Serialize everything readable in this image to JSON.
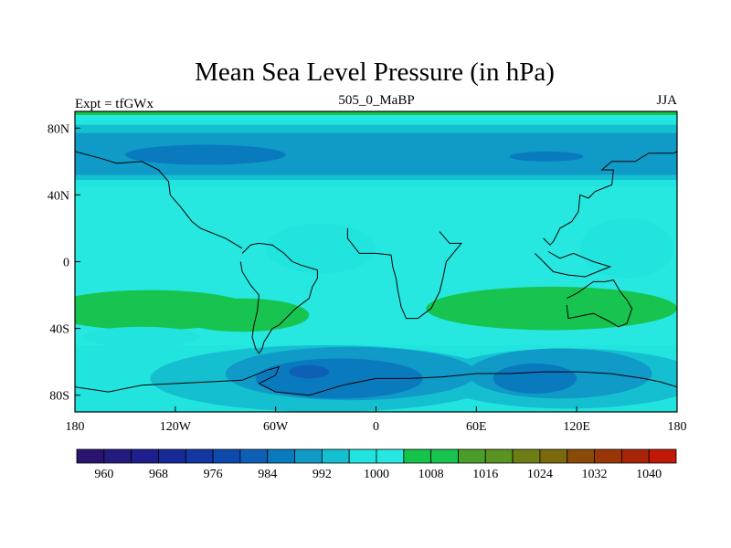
{
  "chart_data": {
    "type": "heatmap",
    "title": "Mean Sea Level Pressure (in hPa)",
    "left_label": "Expt = tfGWx",
    "center_label": "505_0_MaBP",
    "right_label": "JJA",
    "x_range": [
      -180,
      180
    ],
    "y_range": [
      -90,
      90
    ],
    "x_ticks": [
      {
        "value": -180,
        "label": "180"
      },
      {
        "value": -120,
        "label": "120W"
      },
      {
        "value": -60,
        "label": "60W"
      },
      {
        "value": 0,
        "label": "0"
      },
      {
        "value": 60,
        "label": "60E"
      },
      {
        "value": 120,
        "label": "120E"
      },
      {
        "value": 180,
        "label": "180"
      }
    ],
    "y_ticks": [
      {
        "value": 80,
        "label": "80N"
      },
      {
        "value": 40,
        "label": "40N"
      },
      {
        "value": 0,
        "label": "0"
      },
      {
        "value": -40,
        "label": "40S"
      },
      {
        "value": -80,
        "label": "80S"
      }
    ],
    "colorbar": {
      "levels": [
        960,
        964,
        968,
        972,
        976,
        980,
        984,
        988,
        992,
        996,
        1000,
        1004,
        1008,
        1012,
        1016,
        1020,
        1024,
        1028,
        1032,
        1036,
        1040
      ],
      "labels": [
        "960",
        "968",
        "976",
        "984",
        "992",
        "1000",
        "1008",
        "1016",
        "1024",
        "1032",
        "1040"
      ],
      "colors": [
        "#2a1470",
        "#231b7e",
        "#1d1f8c",
        "#172996",
        "#1236a2",
        "#0e4aad",
        "#0d60b6",
        "#0a7abf",
        "#109ac8",
        "#14c0d0",
        "#22e4df",
        "#26e8e0",
        "#16c34a",
        "#18c450",
        "#4a9e28",
        "#58941f",
        "#6e7e14",
        "#7a6a0c",
        "#8a4a08",
        "#9a3506",
        "#a82408",
        "#c21808"
      ]
    },
    "regions": [
      {
        "level": 996,
        "shape": "band",
        "lat": [
          45,
          85
        ]
      },
      {
        "level": 992,
        "shape": "band",
        "lat": [
          49,
          82
        ]
      },
      {
        "level": 988,
        "shape": "band",
        "lat": [
          52,
          77
        ]
      },
      {
        "level": 984,
        "shape": "ellipse",
        "center": [
          -102,
          64
        ],
        "radius": [
          48,
          6
        ]
      },
      {
        "level": 984,
        "shape": "ellipse",
        "center": [
          102,
          63
        ],
        "radius": [
          22,
          3
        ]
      },
      {
        "level": 996,
        "shape": "ellipse",
        "center": [
          -33,
          8
        ],
        "radius": [
          33,
          15
        ]
      },
      {
        "level": 996,
        "shape": "ellipse",
        "center": [
          150,
          8
        ],
        "radius": [
          28,
          18
        ]
      },
      {
        "level": 1008,
        "shape": "ellipse",
        "center": [
          -135,
          -29
        ],
        "radius": [
          62,
          12
        ]
      },
      {
        "level": 1008,
        "shape": "ellipse",
        "center": [
          -80,
          -32
        ],
        "radius": [
          40,
          10
        ]
      },
      {
        "level": 1008,
        "shape": "ellipse",
        "center": [
          105,
          -28
        ],
        "radius": [
          75,
          13
        ]
      },
      {
        "level": 996,
        "shape": "band",
        "lat": [
          -90,
          -50
        ]
      },
      {
        "level": 992,
        "shape": "ellipse",
        "center": [
          -30,
          -70
        ],
        "radius": [
          105,
          20
        ]
      },
      {
        "level": 992,
        "shape": "ellipse",
        "center": [
          115,
          -70
        ],
        "radius": [
          80,
          18
        ]
      },
      {
        "level": 988,
        "shape": "ellipse",
        "center": [
          -15,
          -67
        ],
        "radius": [
          75,
          16
        ]
      },
      {
        "level": 988,
        "shape": "ellipse",
        "center": [
          110,
          -67
        ],
        "radius": [
          55,
          15
        ]
      },
      {
        "level": 984,
        "shape": "ellipse",
        "center": [
          -22,
          -70
        ],
        "radius": [
          50,
          12
        ]
      },
      {
        "level": 984,
        "shape": "ellipse",
        "center": [
          95,
          -70
        ],
        "radius": [
          25,
          9
        ]
      },
      {
        "level": 980,
        "shape": "ellipse",
        "center": [
          -40,
          -66
        ],
        "radius": [
          12,
          4
        ]
      },
      {
        "level": 996,
        "shape": "ellipse",
        "center": [
          -140,
          -45
        ],
        "radius": [
          35,
          6
        ]
      },
      {
        "level": 996,
        "shape": "ellipse",
        "center": [
          -170,
          -76
        ],
        "radius": [
          12,
          8
        ]
      }
    ],
    "coastlines": [
      {
        "name": "south-america",
        "points": [
          [
            -80,
            5
          ],
          [
            -75,
            10
          ],
          [
            -70,
            11
          ],
          [
            -62,
            10
          ],
          [
            -55,
            5
          ],
          [
            -50,
            0
          ],
          [
            -45,
            -2
          ],
          [
            -35,
            -5
          ],
          [
            -35,
            -10
          ],
          [
            -38,
            -15
          ],
          [
            -40,
            -22
          ],
          [
            -48,
            -28
          ],
          [
            -53,
            -33
          ],
          [
            -58,
            -38
          ],
          [
            -62,
            -40
          ],
          [
            -65,
            -45
          ],
          [
            -67,
            -48
          ],
          [
            -68,
            -52
          ],
          [
            -70,
            -55
          ],
          [
            -72,
            -52
          ],
          [
            -74,
            -45
          ],
          [
            -73,
            -38
          ],
          [
            -71,
            -30
          ],
          [
            -70,
            -20
          ],
          [
            -75,
            -14
          ],
          [
            -80,
            -6
          ],
          [
            -81,
            0
          ]
        ]
      },
      {
        "name": "africa",
        "points": [
          [
            -17,
            20
          ],
          [
            -17,
            14
          ],
          [
            -10,
            5
          ],
          [
            0,
            5
          ],
          [
            9,
            4
          ],
          [
            10,
            -3
          ],
          [
            12,
            -10
          ],
          [
            13,
            -17
          ],
          [
            15,
            -27
          ],
          [
            18,
            -34
          ],
          [
            25,
            -34
          ],
          [
            33,
            -28
          ],
          [
            38,
            -18
          ],
          [
            40,
            -10
          ],
          [
            42,
            0
          ],
          [
            51,
            11
          ],
          [
            44,
            11
          ],
          [
            38,
            18
          ]
        ]
      },
      {
        "name": "antarctica",
        "points": [
          [
            -180,
            -75
          ],
          [
            -160,
            -78
          ],
          [
            -140,
            -74
          ],
          [
            -120,
            -73
          ],
          [
            -100,
            -72
          ],
          [
            -80,
            -71
          ],
          [
            -65,
            -65
          ],
          [
            -58,
            -63
          ],
          [
            -60,
            -68
          ],
          [
            -70,
            -73
          ],
          [
            -60,
            -78
          ],
          [
            -40,
            -80
          ],
          [
            -20,
            -74
          ],
          [
            0,
            -70
          ],
          [
            20,
            -70
          ],
          [
            40,
            -69
          ],
          [
            60,
            -67
          ],
          [
            80,
            -67
          ],
          [
            100,
            -66
          ],
          [
            120,
            -66
          ],
          [
            140,
            -67
          ],
          [
            160,
            -70
          ],
          [
            170,
            -72
          ],
          [
            180,
            -75
          ]
        ]
      },
      {
        "name": "australia",
        "points": [
          [
            114,
            -22
          ],
          [
            120,
            -19
          ],
          [
            130,
            -12
          ],
          [
            137,
            -12
          ],
          [
            142,
            -11
          ],
          [
            146,
            -18
          ],
          [
            150,
            -23
          ],
          [
            153,
            -28
          ],
          [
            150,
            -37
          ],
          [
            145,
            -39
          ],
          [
            138,
            -35
          ],
          [
            130,
            -31
          ],
          [
            115,
            -34
          ],
          [
            114,
            -26
          ]
        ]
      },
      {
        "name": "se-asia",
        "points": [
          [
            100,
            14
          ],
          [
            104,
            10
          ],
          [
            106,
            12
          ],
          [
            110,
            20
          ],
          [
            117,
            24
          ],
          [
            121,
            30
          ],
          [
            122,
            40
          ],
          [
            127,
            38
          ],
          [
            131,
            42
          ],
          [
            141,
            46
          ],
          [
            142,
            55
          ],
          [
            135,
            55
          ],
          [
            141,
            60
          ],
          [
            155,
            60
          ],
          [
            163,
            65
          ],
          [
            178,
            65
          ],
          [
            180,
            66
          ]
        ]
      },
      {
        "name": "north-america-west",
        "points": [
          [
            -180,
            66
          ],
          [
            -165,
            62
          ],
          [
            -155,
            59
          ],
          [
            -140,
            60
          ],
          [
            -130,
            55
          ],
          [
            -124,
            48
          ],
          [
            -123,
            40
          ],
          [
            -117,
            33
          ],
          [
            -110,
            24
          ],
          [
            -105,
            20
          ],
          [
            -95,
            16
          ],
          [
            -90,
            14
          ],
          [
            -85,
            11
          ],
          [
            -80,
            8
          ]
        ]
      },
      {
        "name": "indonesia",
        "points": [
          [
            95,
            5
          ],
          [
            100,
            0
          ],
          [
            106,
            -6
          ],
          [
            115,
            -8
          ],
          [
            125,
            -9
          ],
          [
            135,
            -5
          ],
          [
            140,
            -3
          ],
          [
            130,
            0
          ],
          [
            118,
            5
          ],
          [
            110,
            2
          ],
          [
            103,
            6
          ]
        ]
      }
    ]
  }
}
